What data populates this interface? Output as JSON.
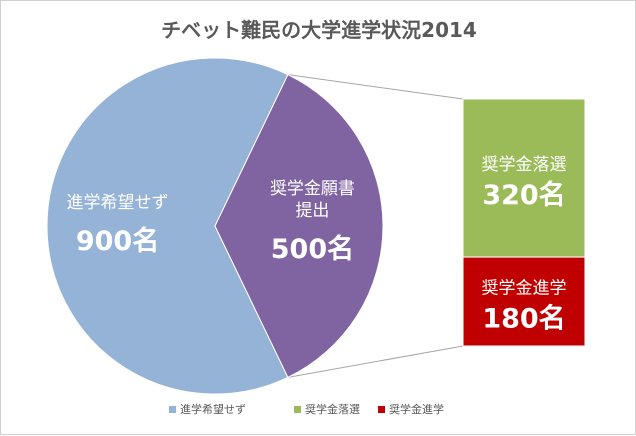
{
  "chart_data": {
    "type": "bar-of-pie",
    "title": "チベット難民の大学進学状況2014",
    "unit": "名",
    "pie": [
      {
        "name": "進学希望せず",
        "label_lines": [
          "進学希望せず"
        ],
        "value": 900,
        "value_label": "900名",
        "color": "#95B3D7"
      },
      {
        "name": "奨学金願書提出",
        "label_lines": [
          "奨学金願書",
          "提出"
        ],
        "value": 500,
        "value_label": "500名",
        "color": "#8064A2"
      }
    ],
    "bar": [
      {
        "name": "奨学金落選",
        "value": 320,
        "value_label": "320名",
        "color": "#9BBB59"
      },
      {
        "name": "奨学金進学",
        "value": 180,
        "value_label": "180名",
        "color": "#C00000"
      }
    ],
    "legend": [
      {
        "name": "進学希望せず",
        "color": "#95B3D7"
      },
      {
        "name": "奨学金落選",
        "color": "#9BBB59"
      },
      {
        "name": "奨学金進学",
        "color": "#C00000"
      }
    ],
    "legend_position": "bottom"
  }
}
